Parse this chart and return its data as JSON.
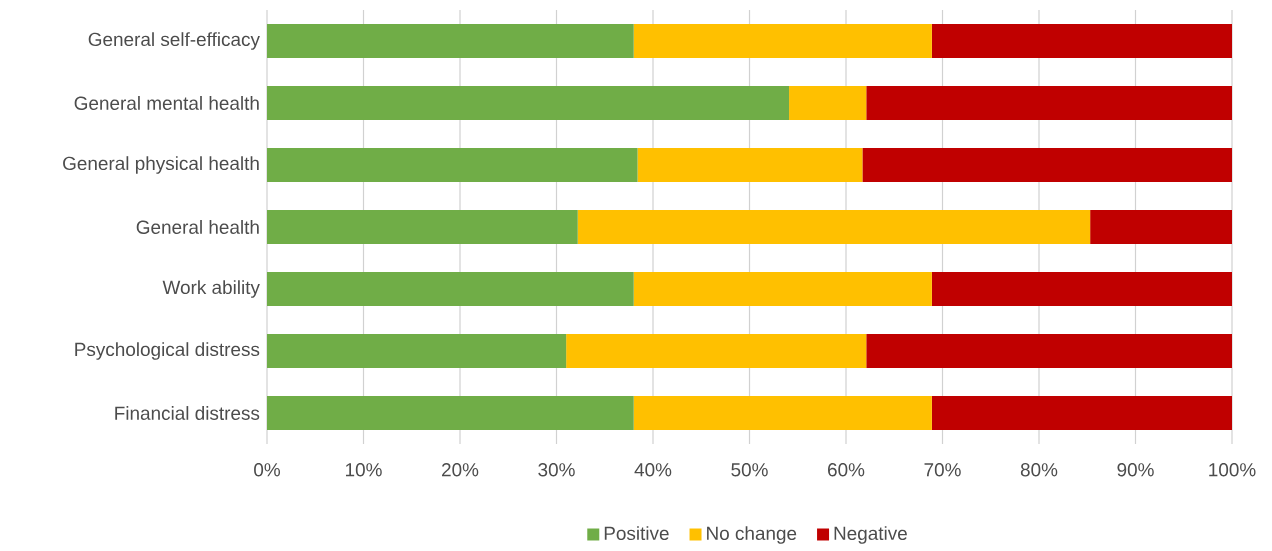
{
  "chart_data": {
    "type": "bar",
    "orientation": "horizontal",
    "stacked": true,
    "categories": [
      "General self-efficacy",
      "General mental health",
      "General physical health",
      "General health",
      "Work ability",
      "Psychological distress",
      "Financial distress"
    ],
    "series": [
      {
        "name": "Positive",
        "color": "#70ad47",
        "values": [
          38,
          54.1,
          38.4,
          32.2,
          38,
          31,
          38
        ]
      },
      {
        "name": "No change",
        "color": "#ffc000",
        "values": [
          30.9,
          8,
          23.3,
          53.1,
          30.9,
          31.1,
          30.9
        ]
      },
      {
        "name": "Negative",
        "color": "#c00000",
        "values": [
          31.1,
          37.9,
          38.3,
          14.7,
          31.1,
          37.9,
          31.1
        ]
      }
    ],
    "xlim": [
      0,
      100
    ],
    "xticks": [
      {
        "value": 0,
        "label": "0%"
      },
      {
        "value": 10,
        "label": "10%"
      },
      {
        "value": 20,
        "label": "20%"
      },
      {
        "value": 30,
        "label": "30%"
      },
      {
        "value": 40,
        "label": "40%"
      },
      {
        "value": 50,
        "label": "50%"
      },
      {
        "value": 60,
        "label": "60%"
      },
      {
        "value": 70,
        "label": "70%"
      },
      {
        "value": 80,
        "label": "80%"
      },
      {
        "value": 90,
        "label": "90%"
      },
      {
        "value": 100,
        "label": "100%"
      }
    ],
    "grid": "x",
    "legend": "bottom"
  }
}
